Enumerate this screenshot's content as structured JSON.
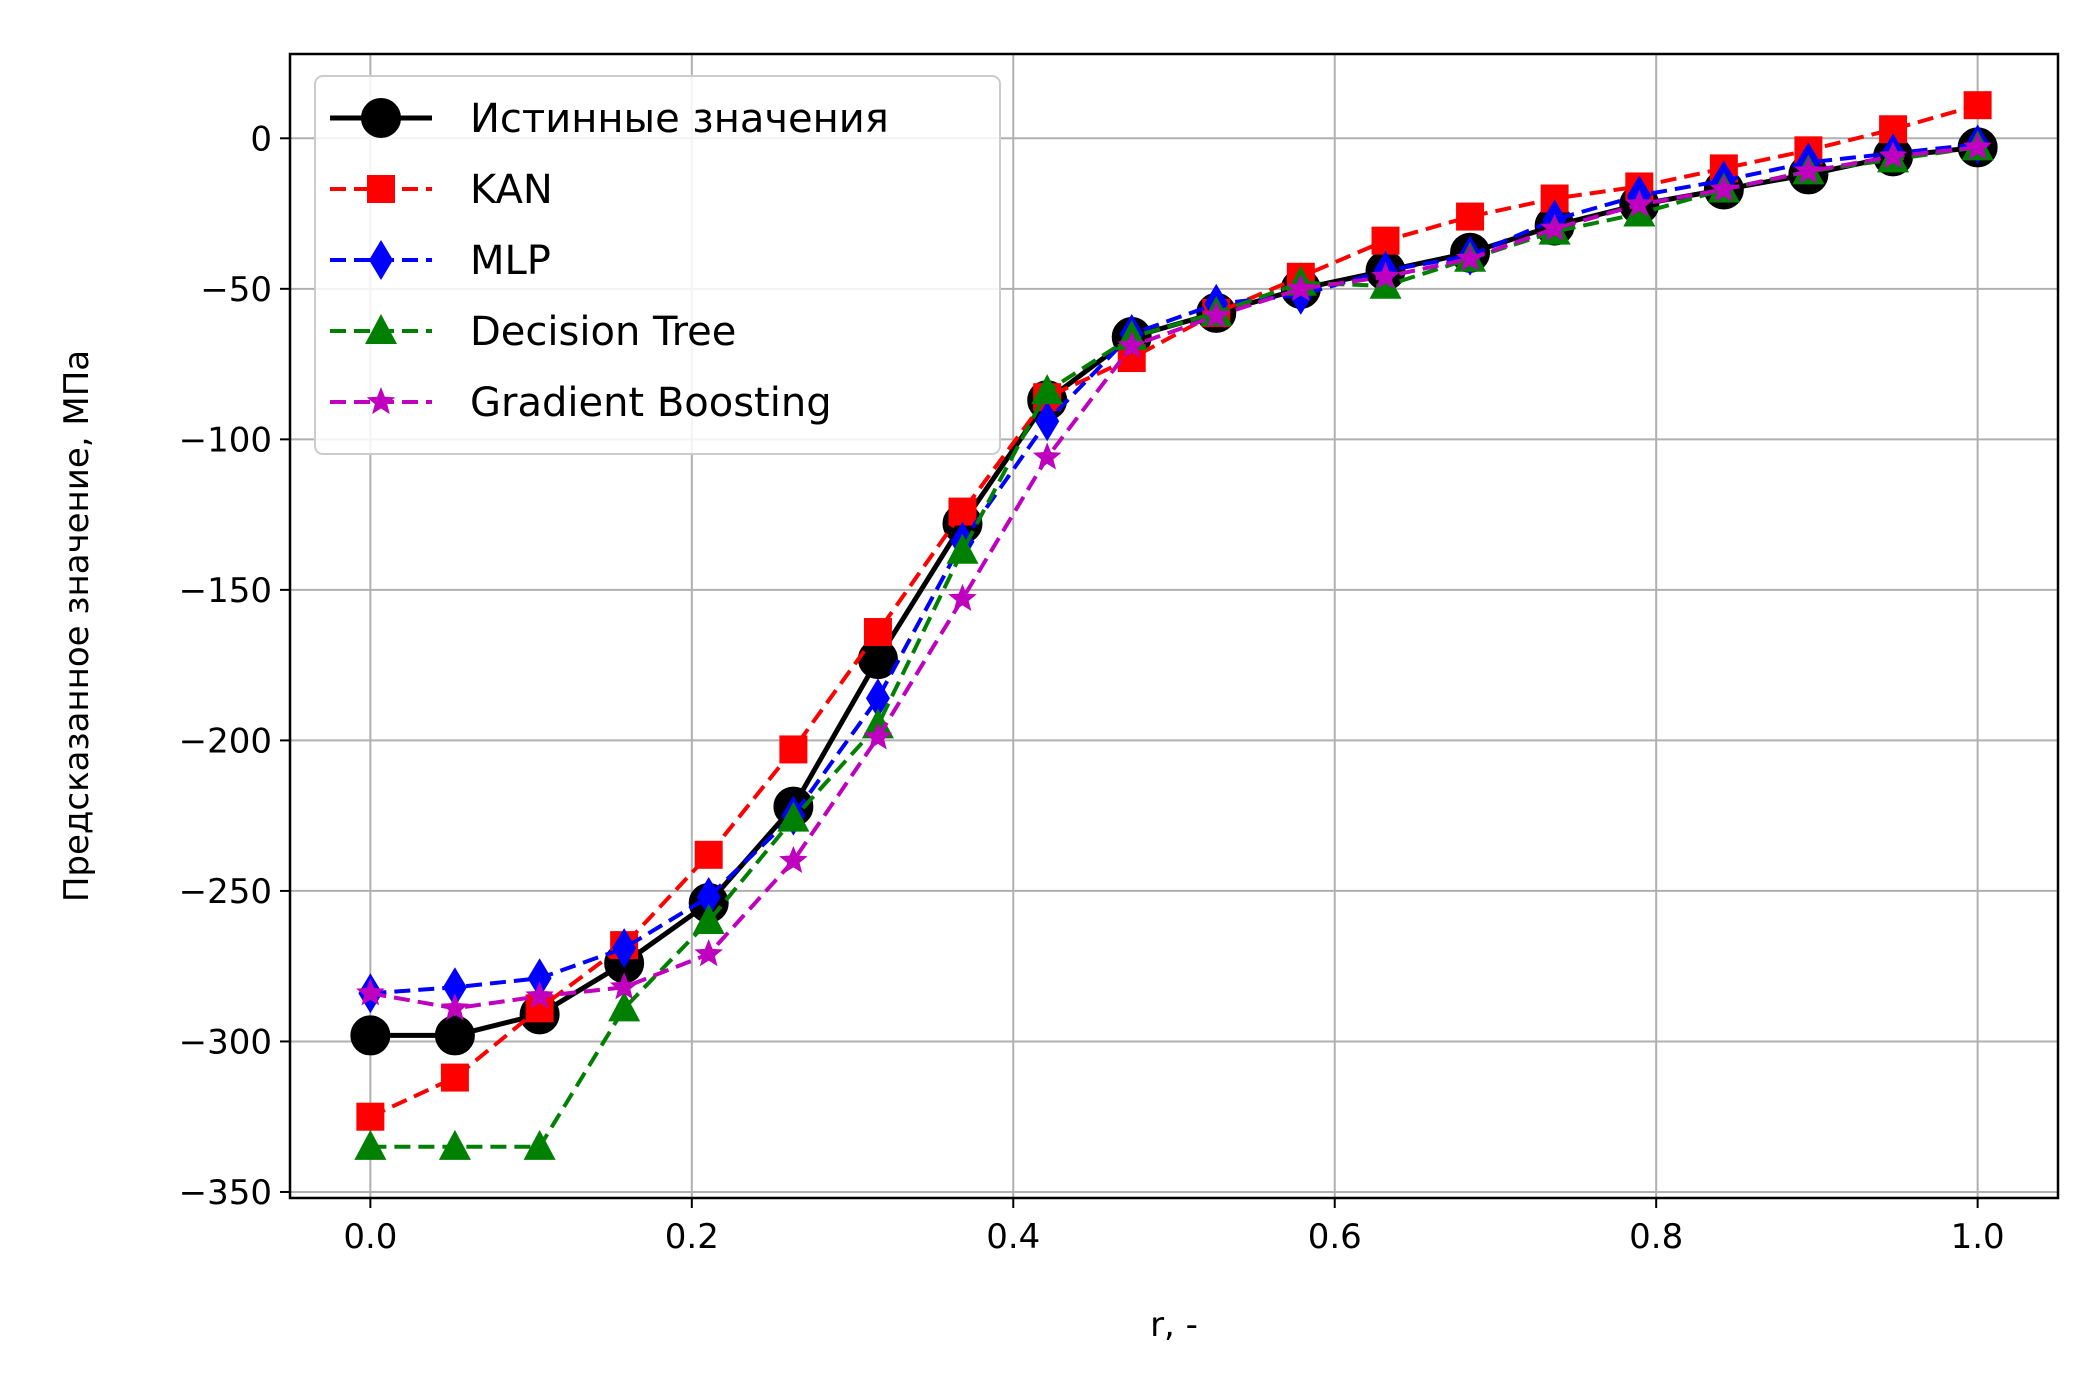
{
  "chart_data": {
    "type": "line",
    "title": "",
    "xlabel": "r, -",
    "ylabel": "Предсказанное значение, МПа",
    "xlim": [
      -0.05,
      1.05
    ],
    "ylim": [
      -352,
      28
    ],
    "xticks": [
      0.0,
      0.2,
      0.4,
      0.6,
      0.8,
      1.0
    ],
    "xtick_labels": [
      "0.0",
      "0.2",
      "0.4",
      "0.6",
      "0.8",
      "1.0"
    ],
    "yticks": [
      0,
      -50,
      -100,
      -150,
      -200,
      -250,
      -300,
      -350
    ],
    "ytick_labels": [
      "0",
      "−50",
      "−100",
      "−150",
      "−200",
      "−250",
      "−300",
      "−350"
    ],
    "grid": true,
    "legend_position": "upper-left",
    "x": [
      0.0,
      0.0526,
      0.1053,
      0.1579,
      0.2105,
      0.2632,
      0.3158,
      0.3684,
      0.4211,
      0.4737,
      0.5263,
      0.5789,
      0.6316,
      0.6842,
      0.7368,
      0.7895,
      0.8421,
      0.8947,
      0.9474,
      1.0
    ],
    "series": [
      {
        "name": "Истинные значения",
        "color": "#000000",
        "linestyle": "solid",
        "marker": "circle",
        "values": [
          -298,
          -298,
          -291,
          -274,
          -254,
          -222,
          -173,
          -128,
          -87,
          -66,
          -58,
          -50,
          -44,
          -38,
          -29,
          -22,
          -17,
          -12,
          -6,
          -3
        ]
      },
      {
        "name": "KAN",
        "color": "#ff0000",
        "linestyle": "dashed",
        "marker": "square",
        "values": [
          -325,
          -312,
          -289,
          -268,
          -238,
          -203,
          -164,
          -124,
          -86,
          -73,
          -58,
          -46,
          -34,
          -26,
          -20,
          -16,
          -10,
          -4,
          3,
          11
        ]
      },
      {
        "name": "MLP",
        "color": "#0000ff",
        "linestyle": "dashed",
        "marker": "thin_diamond",
        "values": [
          -284,
          -282,
          -279,
          -269,
          -252,
          -225,
          -186,
          -134,
          -94,
          -65,
          -55,
          -52,
          -44,
          -39,
          -27,
          -19,
          -14,
          -8,
          -5,
          -2
        ]
      },
      {
        "name": "Decision Tree",
        "color": "#008000",
        "linestyle": "dashed",
        "marker": "triangle",
        "values": [
          -335,
          -335,
          -335,
          -289,
          -260,
          -226,
          -195,
          -137,
          -84,
          -66,
          -58,
          -48,
          -49,
          -40,
          -31,
          -25,
          -17,
          -11,
          -7,
          -3
        ]
      },
      {
        "name": "Gradient Boosting",
        "color": "#bf00bf",
        "linestyle": "dashed",
        "marker": "star",
        "values": [
          -284,
          -289,
          -285,
          -282,
          -271,
          -240,
          -199,
          -153,
          -106,
          -69,
          -59,
          -50,
          -46,
          -40,
          -30,
          -22,
          -17,
          -11,
          -6,
          -3
        ]
      }
    ]
  }
}
